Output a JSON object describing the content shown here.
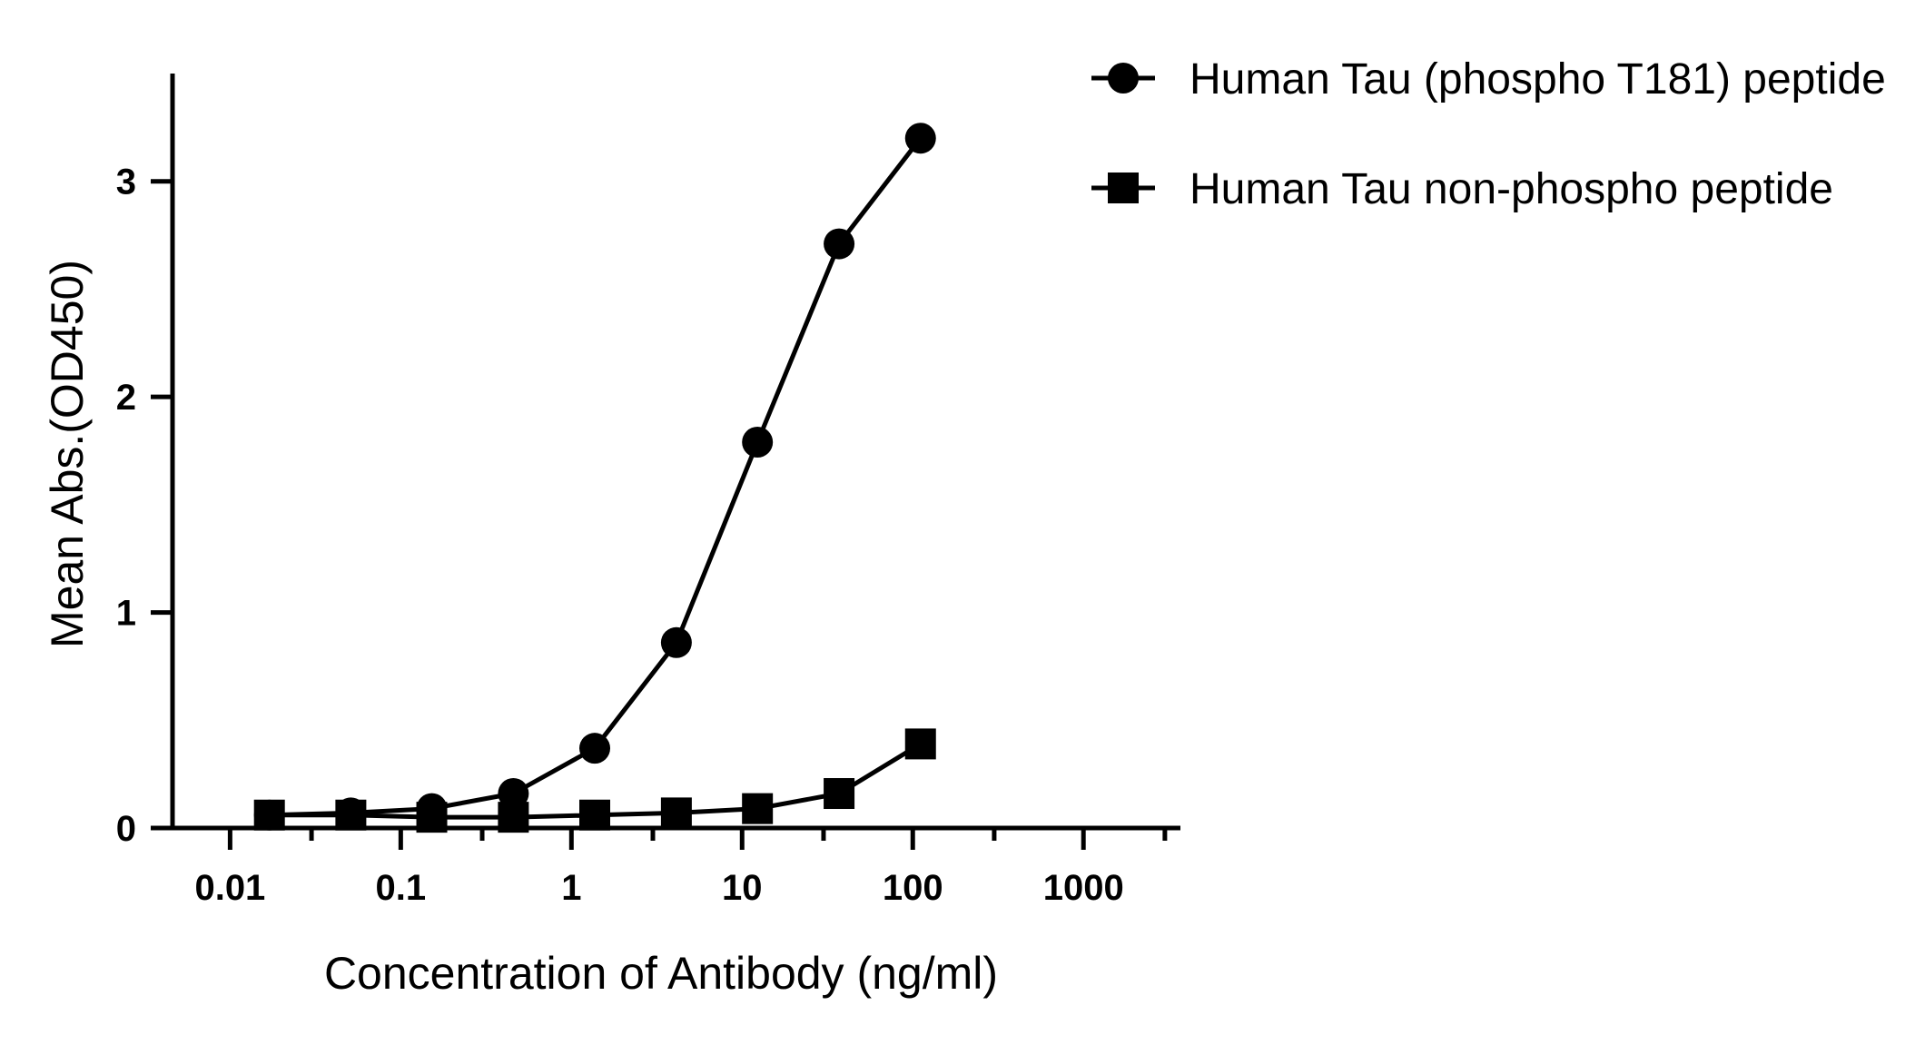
{
  "chart_data": {
    "type": "line",
    "xlabel": "Concentration of Antibody (ng/ml)",
    "ylabel": "Mean Abs.(OD450)",
    "xscale": "log",
    "xlim": [
      0.0046,
      3700
    ],
    "ylim": [
      0,
      3.5
    ],
    "x_ticks": [
      {
        "value": 0.01,
        "label": "0.01"
      },
      {
        "value": 0.1,
        "label": "0.1"
      },
      {
        "value": 1,
        "label": "1"
      },
      {
        "value": 10,
        "label": "10"
      },
      {
        "value": 100,
        "label": "100"
      },
      {
        "value": 1000,
        "label": "1000"
      }
    ],
    "x_minor_ticks": [
      0.03,
      0.3,
      3,
      30,
      300,
      3000
    ],
    "y_ticks": [
      {
        "value": 0,
        "label": "0"
      },
      {
        "value": 1,
        "label": "1"
      },
      {
        "value": 2,
        "label": "2"
      },
      {
        "value": 3,
        "label": "3"
      }
    ],
    "grid": false,
    "legend_position": "top-right",
    "series": [
      {
        "name": "Human Tau (phospho T181) peptide",
        "marker": "circle",
        "color": "#000000",
        "x": [
          0.017,
          0.051,
          0.152,
          0.457,
          1.37,
          4.12,
          12.3,
          37.0,
          111.0
        ],
        "y": [
          0.06,
          0.07,
          0.09,
          0.16,
          0.37,
          0.86,
          1.79,
          2.71,
          3.2
        ]
      },
      {
        "name": "Human Tau non-phospho peptide",
        "marker": "square",
        "color": "#000000",
        "x": [
          0.017,
          0.051,
          0.152,
          0.457,
          1.37,
          4.12,
          12.3,
          37.0,
          111.0
        ],
        "y": [
          0.06,
          0.06,
          0.05,
          0.05,
          0.06,
          0.07,
          0.09,
          0.16,
          0.39
        ]
      }
    ]
  }
}
